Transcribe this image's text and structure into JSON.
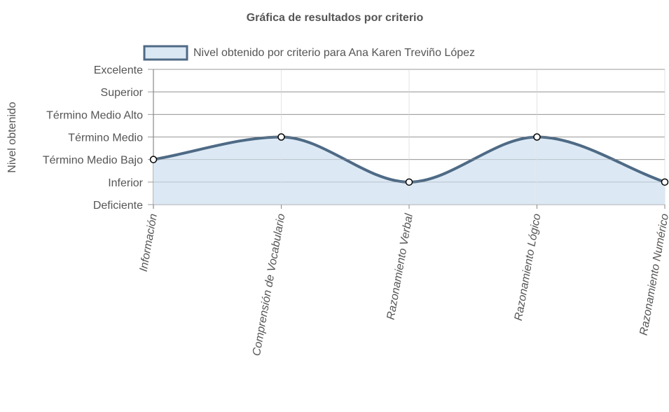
{
  "chart_data": {
    "type": "area",
    "title": "Gráfica de resultados por criterio",
    "xlabel": "",
    "ylabel": "Nivel obtenido",
    "y_levels": [
      "Deficiente",
      "Inferior",
      "Término Medio Bajo",
      "Término Medio",
      "Término Medio Alto",
      "Superior",
      "Excelente"
    ],
    "categories": [
      "Información",
      "Comprensión de Vocabulario",
      "Razonamiento Verbal",
      "Razonamiento Lógico",
      "Razonamiento Numérico"
    ],
    "series": [
      {
        "name": "Nivel obtenido por criterio para Ana Karen Treviño López",
        "values": [
          "Término Medio Bajo",
          "Término Medio",
          "Inferior",
          "Término Medio",
          "Inferior"
        ]
      }
    ],
    "legend_position": "top",
    "grid": true,
    "colors": {
      "line": "#4e6a85",
      "fill": "#dae8f4",
      "grid": "#e3e3e3",
      "level_line": "#999999",
      "axis": "#888888",
      "point_fill": "#ffffff",
      "point_stroke": "#000000"
    }
  }
}
